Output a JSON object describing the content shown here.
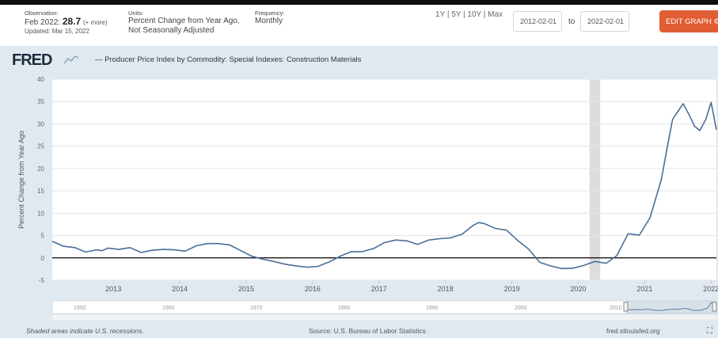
{
  "header": {
    "observation_label": "Observation:",
    "observation_period": "Feb 2022:",
    "observation_value": "28.7",
    "observation_more": "(+ more)",
    "updated": "Updated: Mar 15, 2022",
    "units_label": "Units:",
    "units_line1": "Percent Change from Year Ago,",
    "units_line2": "Not Seasonally Adjusted",
    "frequency_label": "Frequency:",
    "frequency_value": "Monthly",
    "range_links": "1Y | 5Y | 10Y | Max",
    "start_date": "2012-02-01",
    "to_label": "to",
    "end_date": "2022-02-01",
    "edit_button": "EDIT GRAPH"
  },
  "logo_text": "FRED",
  "footer": {
    "recession_note": "Shaded areas indicate U.S. recessions.",
    "source": "Source: U.S. Bureau of Labor Statistics",
    "site": "fred.stlouisfed.org"
  },
  "colors": {
    "line": "#4a6f96",
    "plot_bg": "#ffffff",
    "chart_bg": "#e1e9f0",
    "recession": "#dddddd",
    "edit_button": "#e05d33"
  },
  "chart_data": {
    "type": "line",
    "title": "Producer Price Index by Commodity: Special Indexes: Construction Materials",
    "ylabel": "Percent Change from Year Ago",
    "xlabel": "",
    "xlim": [
      2012.08,
      2022.08
    ],
    "ylim": [
      -5,
      40
    ],
    "yticks": [
      -5,
      0,
      5,
      10,
      15,
      20,
      25,
      30,
      35,
      40
    ],
    "xticks": [
      "2013",
      "2014",
      "2015",
      "2016",
      "2017",
      "2018",
      "2019",
      "2020",
      "2021",
      "2022"
    ],
    "grid": true,
    "recessions": [
      [
        2020.17,
        2020.33
      ]
    ],
    "navigator_labels": [
      "1950",
      "1960",
      "1970",
      "1980",
      "1990",
      "2000",
      "2010"
    ],
    "series": [
      {
        "x": [
          2012.08,
          2012.25,
          2012.42,
          2012.58,
          2012.75,
          2012.83,
          2012.92,
          2013.08,
          2013.25,
          2013.42,
          2013.58,
          2013.75,
          2013.92,
          2014.08,
          2014.25,
          2014.42,
          2014.58,
          2014.75,
          2014.92,
          2015.08,
          2015.25,
          2015.42,
          2015.58,
          2015.75,
          2015.92,
          2016.08,
          2016.25,
          2016.42,
          2016.58,
          2016.75,
          2016.92,
          2017.08,
          2017.25,
          2017.42,
          2017.58,
          2017.75,
          2017.92,
          2018.08,
          2018.25,
          2018.42,
          2018.5,
          2018.58,
          2018.75,
          2018.92,
          2019.08,
          2019.25,
          2019.42,
          2019.58,
          2019.75,
          2019.92,
          2020.08,
          2020.25,
          2020.42,
          2020.58,
          2020.75,
          2020.92,
          2021.08,
          2021.25,
          2021.33,
          2021.42,
          2021.58,
          2021.67,
          2021.75,
          2021.83,
          2021.92,
          2022.0,
          2022.08
        ],
        "y": [
          3.7,
          2.6,
          2.3,
          1.3,
          1.8,
          1.6,
          2.2,
          1.9,
          2.3,
          1.2,
          1.7,
          1.9,
          1.8,
          1.5,
          2.7,
          3.2,
          3.2,
          2.9,
          1.6,
          0.4,
          -0.3,
          -0.8,
          -1.4,
          -1.8,
          -2.1,
          -1.9,
          -0.9,
          0.4,
          1.4,
          1.4,
          2.1,
          3.4,
          4.0,
          3.8,
          3.0,
          4.0,
          4.3,
          4.5,
          5.3,
          7.3,
          7.9,
          7.7,
          6.6,
          6.2,
          4.0,
          2.0,
          -1.0,
          -1.8,
          -2.4,
          -2.3,
          -1.7,
          -0.8,
          -1.2,
          0.5,
          5.4,
          5.1,
          9.0,
          17.5,
          24.0,
          31.0,
          34.5,
          32.0,
          29.5,
          28.5,
          31.0,
          34.8,
          28.7
        ]
      }
    ]
  }
}
